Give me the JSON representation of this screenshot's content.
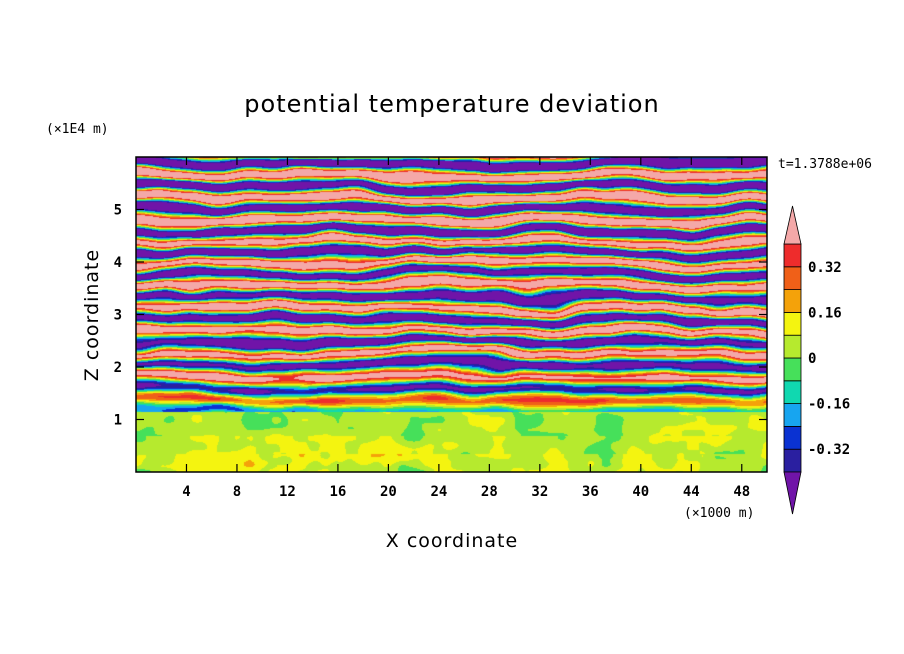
{
  "chart_data": {
    "type": "heatmap",
    "title": "potential temperature deviation",
    "xlabel": "X coordinate",
    "ylabel": "Z coordinate",
    "x_unit": "(×1000 m)",
    "y_unit": "(×1E4 m)",
    "time_label": "t=1.3788e+06",
    "xlim": [
      0,
      50
    ],
    "ylim": [
      0,
      6
    ],
    "x_ticks": [
      4,
      8,
      12,
      16,
      20,
      24,
      28,
      32,
      36,
      40,
      44,
      48
    ],
    "y_ticks": [
      1,
      2,
      3,
      4,
      5
    ],
    "colorbar": {
      "levels": [
        -0.4,
        -0.32,
        -0.24,
        -0.16,
        -0.08,
        0,
        0.08,
        0.16,
        0.24,
        0.32,
        0.4
      ],
      "labels": [
        "0.32",
        "0.16",
        "0",
        "-0.16",
        "-0.32"
      ],
      "label_values": [
        0.32,
        0.16,
        0,
        -0.16,
        -0.32
      ],
      "colors": [
        "#7014a8",
        "#2a1fa0",
        "#0a32d2",
        "#17a5f0",
        "#10d8b0",
        "#46e05a",
        "#b6ea2e",
        "#f4f410",
        "#f4a20a",
        "#f06018",
        "#ee2c2c",
        "#f4a8a8"
      ],
      "extend": "both"
    }
  }
}
